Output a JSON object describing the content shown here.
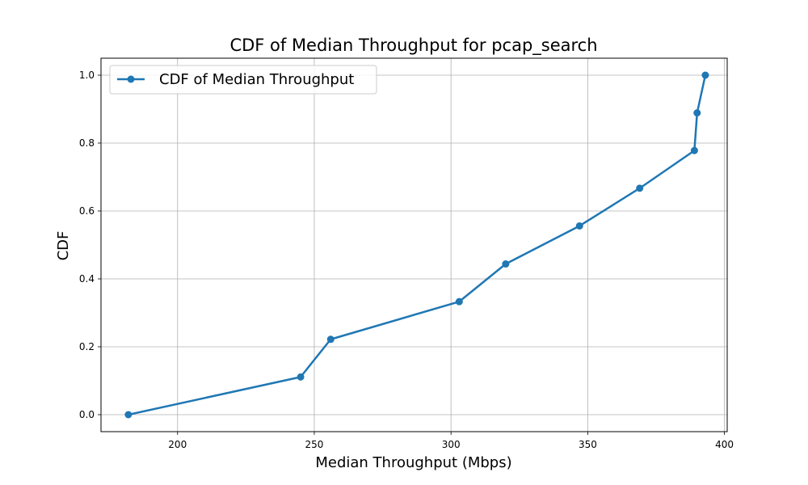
{
  "chart_data": {
    "type": "line",
    "title": "CDF of Median Throughput for pcap_search",
    "xlabel": "Median Throughput (Mbps)",
    "ylabel": "CDF",
    "xlim": [
      172,
      401
    ],
    "ylim": [
      -0.05,
      1.05
    ],
    "x_ticks": [
      200,
      250,
      300,
      350,
      400
    ],
    "y_ticks": [
      0.0,
      0.2,
      0.4,
      0.6,
      0.8,
      1.0
    ],
    "grid": true,
    "legend_position": "top-left",
    "series": [
      {
        "name": "CDF of Median Throughput",
        "color": "#1f77b4",
        "marker": "circle",
        "x": [
          182,
          245,
          256,
          303,
          320,
          347,
          369,
          389,
          390,
          393
        ],
        "y": [
          0.0,
          0.111,
          0.222,
          0.333,
          0.444,
          0.556,
          0.667,
          0.778,
          0.889,
          1.0
        ]
      }
    ]
  }
}
